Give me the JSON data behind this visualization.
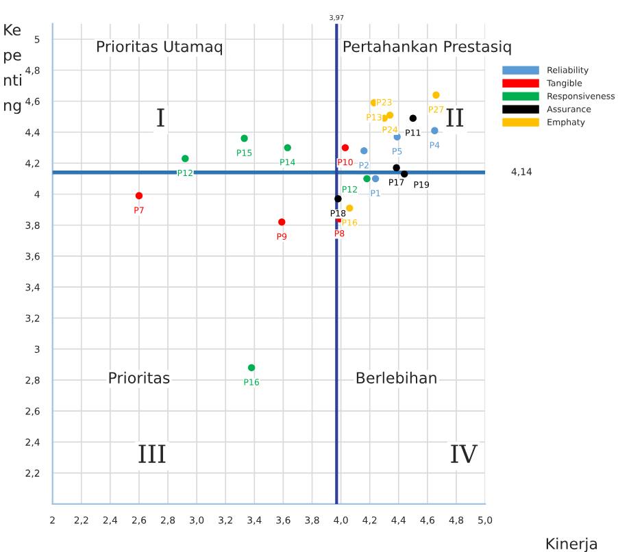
{
  "chart_data": {
    "type": "scatter",
    "xlabel": "Kinerja",
    "ylabel": "Ke\npe\nnti\nng",
    "series": [
      {
        "name": "Reliability",
        "color": "#5b9bd5",
        "x": [
          4.24,
          4.16,
          4.39,
          4.65
        ],
        "values": [
          4.1,
          4.28,
          4.37,
          4.41
        ],
        "value_labels": [
          "P1",
          "P2",
          "P5",
          "P4"
        ]
      },
      {
        "name": "Tangible",
        "color": "#ff0000",
        "x": [
          2.6,
          3.59,
          4.03,
          3.99
        ],
        "values": [
          3.99,
          3.82,
          4.3,
          3.84
        ],
        "value_labels": [
          "P7",
          "P9",
          "P10",
          "P8"
        ]
      },
      {
        "name": "Responsiveness",
        "color": "#00b050",
        "x": [
          2.92,
          3.33,
          3.63,
          4.18,
          3.38
        ],
        "values": [
          4.23,
          4.36,
          4.3,
          4.1,
          2.88
        ],
        "value_labels": [
          "P12",
          "P15",
          "P14",
          "P12",
          "P16"
        ]
      },
      {
        "name": "Assurance",
        "color": "#000000",
        "x": [
          3.98,
          4.385,
          4.44,
          4.5
        ],
        "values": [
          3.97,
          4.17,
          4.13,
          4.49
        ],
        "value_labels": [
          "P18",
          "P17",
          "P19",
          "P11"
        ]
      },
      {
        "name": "Emphaty",
        "color": "#ffc000",
        "x": [
          4.06,
          4.23,
          4.34,
          4.3,
          4.66
        ],
        "values": [
          3.91,
          4.59,
          4.51,
          4.49,
          4.64
        ],
        "value_labels": [
          "P16",
          "P13",
          "P24",
          "P23",
          "P27"
        ]
      }
    ],
    "xlim": [
      2,
      5.0
    ],
    "ylim": [
      2,
      5.1
    ],
    "xticks": [
      {
        "value": 2,
        "label": "2"
      },
      {
        "value": 2.2,
        "label": "2,2"
      },
      {
        "value": 2.4,
        "label": "2,4"
      },
      {
        "value": 2.6,
        "label": "2,6"
      },
      {
        "value": 2.8,
        "label": "2,8"
      },
      {
        "value": 3.0,
        "label": "3,0"
      },
      {
        "value": 3.2,
        "label": "3,2"
      },
      {
        "value": 3.4,
        "label": "3,4"
      },
      {
        "value": 3.6,
        "label": "3,6"
      },
      {
        "value": 3.8,
        "label": "3,8"
      },
      {
        "value": 4.0,
        "label": "4,0"
      },
      {
        "value": 4.2,
        "label": "4,2"
      },
      {
        "value": 4.4,
        "label": "4,4"
      },
      {
        "value": 4.6,
        "label": "4,6"
      },
      {
        "value": 4.8,
        "label": "4,8"
      },
      {
        "value": 5.0,
        "label": "5,0"
      }
    ],
    "yticks": [
      {
        "value": 2.2,
        "label": "2,2"
      },
      {
        "value": 2.4,
        "label": "2,4"
      },
      {
        "value": 2.6,
        "label": "2,6"
      },
      {
        "value": 2.8,
        "label": "2,8"
      },
      3,
      {
        "value": 3.2,
        "label": "3,2"
      },
      {
        "value": 3.4,
        "label": "3,4"
      },
      {
        "value": 3.6,
        "label": "3,6"
      },
      {
        "value": 3.8,
        "label": "3,8"
      },
      4,
      {
        "value": 4.2,
        "label": "4,2"
      },
      {
        "value": 4.4,
        "label": "4,4"
      },
      {
        "value": 4.6,
        "label": "4,6"
      },
      {
        "value": 4.8,
        "label": "4,8"
      },
      5
    ],
    "ref_lines": [
      {
        "axis": "y",
        "value": 4.14,
        "label": "4,14",
        "color": "#2e75b6"
      },
      {
        "axis": "x",
        "value": 3.97,
        "label": "3,97",
        "color": "#2f3f9e"
      }
    ],
    "annotations": [
      "Prioritas Utamaq",
      "I",
      "Pertahankan Prestasiq",
      "II",
      "Prioritas",
      "III",
      "Berlebihan",
      "IV"
    ],
    "grid": true,
    "legend": "top right",
    "marker": "circle"
  }
}
